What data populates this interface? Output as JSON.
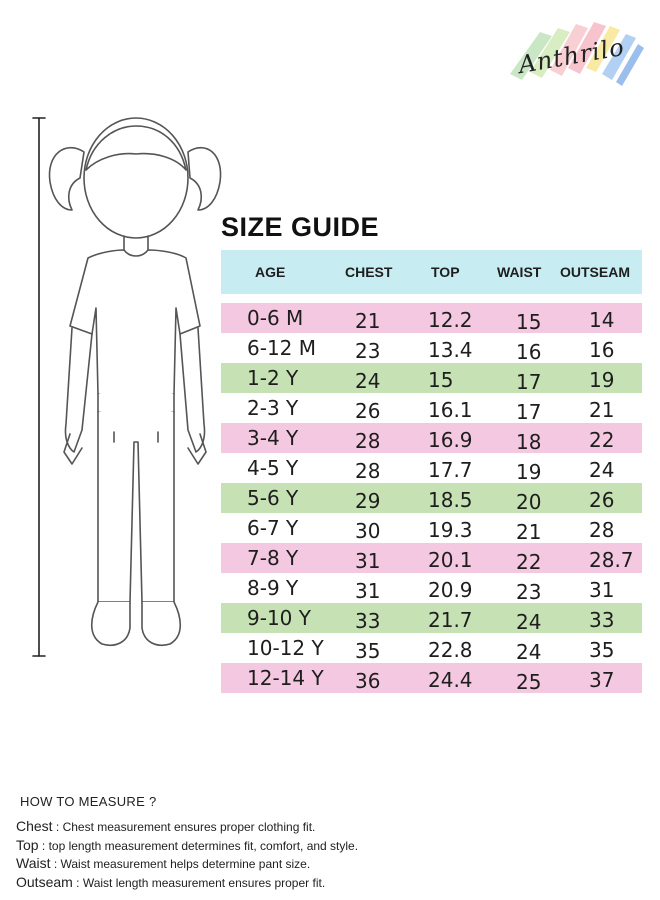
{
  "brand": {
    "name": "Anthrilo"
  },
  "title": "SIZE GUIDE",
  "headers": {
    "age": "AGE",
    "chest": "CHEST",
    "top": "TOP",
    "waist": "WAIST",
    "outseam": "OUTSEAM"
  },
  "colors": {
    "header": "#c7ecf2",
    "pink": "#f4c8e0",
    "green": "#c6e1b4"
  },
  "rows": [
    {
      "age": "0-6 M",
      "chest": "21",
      "top": "12.2",
      "waist": "15",
      "outseam": "14",
      "color": "pink"
    },
    {
      "age": "6-12 M",
      "chest": "23",
      "top": "13.4",
      "waist": "16",
      "outseam": "16",
      "color": "white"
    },
    {
      "age": "1-2 Y",
      "chest": "24",
      "top": "15",
      "waist": "17",
      "outseam": "19",
      "color": "green"
    },
    {
      "age": "2-3 Y",
      "chest": "26",
      "top": "16.1",
      "waist": "17",
      "outseam": "21",
      "color": "white"
    },
    {
      "age": "3-4 Y",
      "chest": "28",
      "top": "16.9",
      "waist": "18",
      "outseam": "22",
      "color": "pink"
    },
    {
      "age": "4-5 Y",
      "chest": "28",
      "top": "17.7",
      "waist": "19",
      "outseam": "24",
      "color": "white"
    },
    {
      "age": "5-6 Y",
      "chest": "29",
      "top": "18.5",
      "waist": "20",
      "outseam": "26",
      "color": "green"
    },
    {
      "age": "6-7 Y",
      "chest": "30",
      "top": "19.3",
      "waist": "21",
      "outseam": "28",
      "color": "white"
    },
    {
      "age": "7-8 Y",
      "chest": "31",
      "top": "20.1",
      "waist": "22",
      "outseam": "28.7",
      "color": "pink"
    },
    {
      "age": "8-9 Y",
      "chest": "31",
      "top": "20.9",
      "waist": "23",
      "outseam": "31",
      "color": "white"
    },
    {
      "age": "9-10 Y",
      "chest": "33",
      "top": "21.7",
      "waist": "24",
      "outseam": "33",
      "color": "green"
    },
    {
      "age": "10-12 Y",
      "chest": "35",
      "top": "22.8",
      "waist": "24",
      "outseam": "35",
      "color": "white"
    },
    {
      "age": "12-14 Y",
      "chest": "36",
      "top": "24.4",
      "waist": "25",
      "outseam": "37",
      "color": "pink"
    }
  ],
  "how_to_measure": {
    "heading": "HOW TO MEASURE ?",
    "notes": [
      {
        "term": "Chest",
        "text": " : Chest measurement ensures proper clothing fit."
      },
      {
        "term": "Top",
        "text": " : top length measurement determines fit, comfort, and style."
      },
      {
        "term": "Waist",
        "text": " : Waist measurement helps determine pant size."
      },
      {
        "term": "Outseam",
        "text": " : Waist length measurement ensures proper fit."
      }
    ]
  }
}
